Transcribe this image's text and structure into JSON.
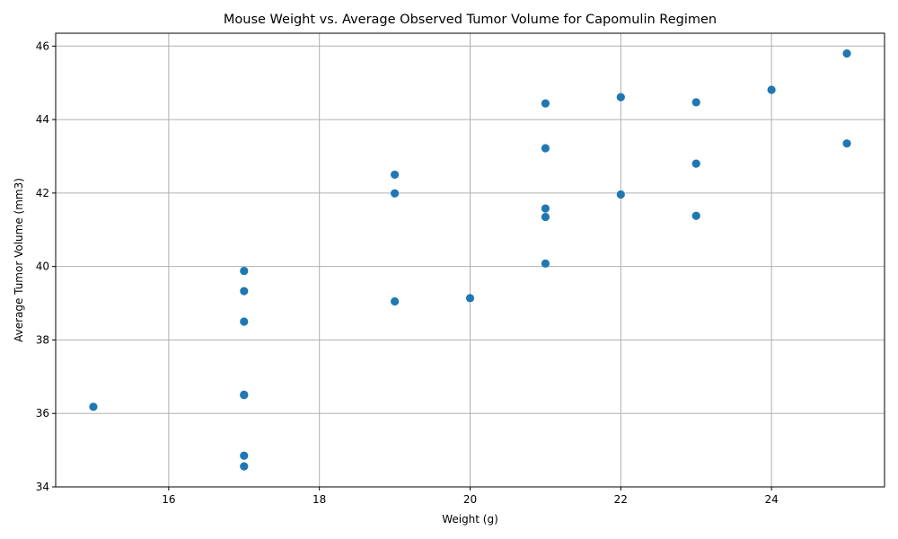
{
  "chart_data": {
    "type": "scatter",
    "title": "Mouse Weight vs. Average Observed Tumor Volume for Capomulin Regimen",
    "xlabel": "Weight (g)",
    "ylabel": "Average Tumor Volume (mm3)",
    "xlim": [
      14.5,
      25.5
    ],
    "ylim": [
      34.0,
      46.35
    ],
    "x_ticks": [
      16,
      18,
      20,
      22,
      24
    ],
    "y_ticks": [
      34,
      36,
      38,
      40,
      42,
      44,
      46
    ],
    "x_tick_labels": [
      "16",
      "18",
      "20",
      "22",
      "24"
    ],
    "y_tick_labels": [
      "34",
      "36",
      "38",
      "40",
      "42",
      "44",
      "46"
    ],
    "grid": true,
    "marker_color": "#1f77b4",
    "grid_color": "#b0b0b0",
    "points": [
      {
        "x": 15,
        "y": 36.18
      },
      {
        "x": 17,
        "y": 34.56
      },
      {
        "x": 17,
        "y": 34.85
      },
      {
        "x": 17,
        "y": 36.5
      },
      {
        "x": 17,
        "y": 36.51
      },
      {
        "x": 17,
        "y": 38.5
      },
      {
        "x": 17,
        "y": 39.33
      },
      {
        "x": 17,
        "y": 39.88
      },
      {
        "x": 19,
        "y": 39.05
      },
      {
        "x": 19,
        "y": 41.99
      },
      {
        "x": 19,
        "y": 42.5
      },
      {
        "x": 20,
        "y": 39.14
      },
      {
        "x": 21,
        "y": 40.08
      },
      {
        "x": 21,
        "y": 41.35
      },
      {
        "x": 21,
        "y": 41.58
      },
      {
        "x": 21,
        "y": 43.22
      },
      {
        "x": 21,
        "y": 44.44
      },
      {
        "x": 22,
        "y": 41.96
      },
      {
        "x": 22,
        "y": 44.61
      },
      {
        "x": 23,
        "y": 41.38
      },
      {
        "x": 23,
        "y": 42.8
      },
      {
        "x": 23,
        "y": 44.47
      },
      {
        "x": 24,
        "y": 44.81
      },
      {
        "x": 25,
        "y": 43.35
      },
      {
        "x": 25,
        "y": 45.8
      }
    ]
  }
}
